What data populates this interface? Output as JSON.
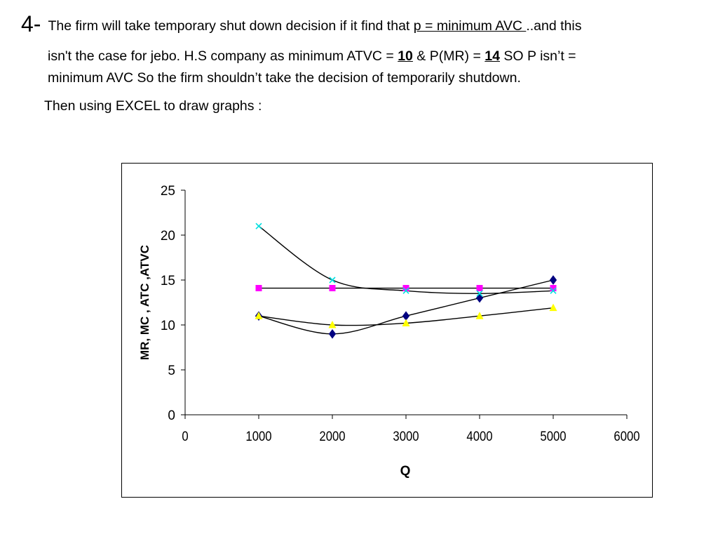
{
  "text": {
    "number": "4-",
    "l1_part1": "The firm will take  temporary shut down decision if it find that ",
    "l1_underlined": "p = minimum AVC ",
    "l1_part2": "..and this",
    "l2_part1": "isn't the case for jebo. H.S  company as minimum ATVC = ",
    "l2_atvc": "10",
    "l2_part2": "  & P(MR) = ",
    "l2_mr": "14",
    "l2_part3": " SO P isn’t =",
    "l3": "minimum AVC So the firm shouldn’t take the decision of temporarily shutdown.",
    "l4": "Then using EXCEL to draw graphs :"
  },
  "chart_data": {
    "type": "line",
    "title": "",
    "xlabel": "Q",
    "ylabel": "MR, MC , ATC ,ATVC",
    "xlim": [
      0,
      6000
    ],
    "ylim": [
      0,
      25
    ],
    "x_ticks": [
      0,
      1000,
      2000,
      3000,
      4000,
      5000,
      6000
    ],
    "y_ticks": [
      0,
      5,
      10,
      15,
      20,
      25
    ],
    "grid": false,
    "legend": "none",
    "series": [
      {
        "marker": "diamond",
        "color": "#000080",
        "x": [
          1000,
          2000,
          3000,
          4000,
          5000
        ],
        "y": [
          11,
          9,
          11,
          13,
          15
        ]
      },
      {
        "marker": "square",
        "color": "#ff00ff",
        "x": [
          1000,
          2000,
          3000,
          4000,
          5000
        ],
        "y": [
          14.1,
          14.1,
          14.1,
          14.1,
          14.1
        ]
      },
      {
        "marker": "triangle",
        "color": "#ffff00",
        "x": [
          1000,
          2000,
          3000,
          4000,
          5000
        ],
        "y": [
          11,
          10,
          10.2,
          11,
          11.9
        ]
      },
      {
        "marker": "x",
        "color": "#00e0e0",
        "x": [
          1000,
          2000,
          3000,
          4000,
          5000
        ],
        "y": [
          21,
          15,
          13.8,
          13.5,
          13.8
        ]
      }
    ]
  }
}
